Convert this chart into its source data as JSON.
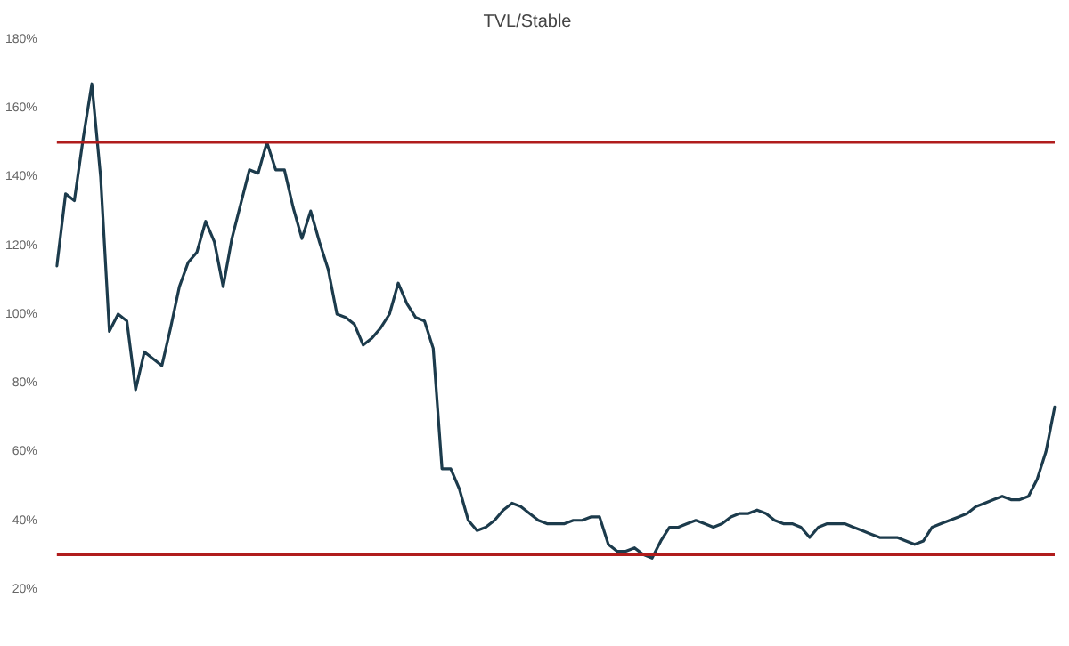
{
  "chart_data": {
    "type": "line",
    "title": "TVL/Stable",
    "categories": [
      null,
      null,
      null,
      null,
      null,
      null,
      null,
      null,
      null,
      null,
      null,
      null,
      null,
      null,
      null,
      null,
      null,
      null,
      null,
      null,
      null,
      null,
      null,
      null,
      null,
      null,
      null,
      null,
      null,
      null,
      null,
      null,
      null,
      null,
      null,
      null,
      null,
      null,
      null,
      null,
      null,
      null,
      null,
      null,
      null,
      null,
      null,
      null,
      null,
      null,
      null,
      null,
      null,
      null,
      null,
      null,
      null,
      null,
      null,
      null,
      null,
      null,
      null,
      null,
      null,
      null,
      null,
      null,
      null,
      null,
      null,
      null,
      null,
      null,
      null,
      null,
      null,
      null,
      null,
      null,
      null,
      null,
      null,
      null,
      null,
      null,
      null,
      null,
      null,
      null,
      null,
      null,
      null,
      null,
      null,
      null,
      null,
      null,
      null,
      null,
      null,
      null,
      null,
      null,
      null,
      null,
      null,
      null,
      null,
      null,
      null,
      null,
      null,
      null,
      null
    ],
    "tick_labels": "y",
    "grid": false,
    "legend": false,
    "marker": "none",
    "line_style": "solid",
    "ylim": [
      20,
      180
    ],
    "yticks": [
      {
        "value": 20,
        "label": "20%"
      },
      {
        "value": 40,
        "label": "40%"
      },
      {
        "value": 60,
        "label": "60%"
      },
      {
        "value": 80,
        "label": "80%"
      },
      {
        "value": 100,
        "label": "100%"
      },
      {
        "value": 120,
        "label": "120%"
      },
      {
        "value": 140,
        "label": "140%"
      },
      {
        "value": 160,
        "label": "160%"
      },
      {
        "value": 180,
        "label": "180%"
      }
    ],
    "series": [
      {
        "color": "#1c3b4c",
        "values": [
          114,
          135,
          133,
          151,
          167,
          140,
          95,
          100,
          98,
          78,
          89,
          87,
          85,
          96,
          108,
          115,
          118,
          127,
          121,
          108,
          122,
          132,
          142,
          141,
          150,
          142,
          142,
          131,
          122,
          130,
          121,
          113,
          100,
          99,
          97,
          91,
          93,
          96,
          100,
          109,
          103,
          99,
          98,
          90,
          55,
          55,
          49,
          40,
          37,
          38,
          40,
          43,
          45,
          44,
          42,
          40,
          39,
          39,
          39,
          40,
          40,
          41,
          41,
          33,
          31,
          31,
          32,
          30,
          29,
          34,
          38,
          38,
          39,
          40,
          39,
          38,
          39,
          41,
          42,
          42,
          43,
          42,
          40,
          39,
          39,
          38,
          35,
          38,
          39,
          39,
          39,
          38,
          37,
          36,
          35,
          35,
          35,
          34,
          33,
          34,
          38,
          39,
          40,
          41,
          42,
          44,
          45,
          46,
          47,
          46,
          46,
          47,
          52,
          60,
          73
        ]
      }
    ],
    "ref_lines": [
      {
        "axis": "y",
        "value": 150,
        "color": "#b01c1c"
      },
      {
        "axis": "y",
        "value": 30,
        "color": "#b01c1c"
      }
    ]
  }
}
